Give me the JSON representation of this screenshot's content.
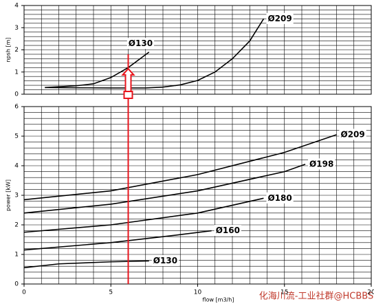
{
  "chart_data": [
    {
      "type": "line",
      "ylabel": "npsh [m]",
      "xlim": [
        0,
        20
      ],
      "ylim": [
        0,
        4
      ],
      "yticks": [
        0,
        1,
        2,
        3,
        4
      ],
      "grid": true,
      "x_minor_divisions": 5,
      "y_minor_divisions": 5,
      "series": [
        {
          "name": "Ø209",
          "color": "#000000",
          "x": [
            1.2,
            3,
            5,
            7,
            8,
            9,
            10,
            11,
            12,
            13,
            13.8
          ],
          "values": [
            0.3,
            0.29,
            0.28,
            0.28,
            0.32,
            0.42,
            0.62,
            1.0,
            1.6,
            2.4,
            3.4
          ]
        },
        {
          "name": "Ø130",
          "color": "#000000",
          "x": [
            1.2,
            3,
            4,
            5,
            6,
            7.2
          ],
          "values": [
            0.3,
            0.38,
            0.47,
            0.75,
            1.2,
            1.9
          ]
        }
      ]
    },
    {
      "type": "line",
      "ylabel": "power [kW]",
      "xlabel": "flow [m3/h]",
      "xlim": [
        0,
        20
      ],
      "ylim": [
        0,
        6
      ],
      "yticks": [
        0,
        1,
        2,
        3,
        4,
        5,
        6
      ],
      "xticks": [
        0,
        5,
        10,
        15,
        20
      ],
      "grid": true,
      "x_minor_divisions": 5,
      "y_minor_divisions": 5,
      "series": [
        {
          "name": "Ø209",
          "color": "#000000",
          "x": [
            0,
            5,
            10,
            15,
            18
          ],
          "values": [
            2.85,
            3.15,
            3.7,
            4.45,
            5.05
          ]
        },
        {
          "name": "Ø198",
          "color": "#000000",
          "x": [
            0,
            5,
            10,
            15,
            16.2
          ],
          "values": [
            2.4,
            2.7,
            3.15,
            3.8,
            4.05
          ]
        },
        {
          "name": "Ø180",
          "color": "#000000",
          "x": [
            0,
            5,
            10,
            13.8
          ],
          "values": [
            1.75,
            2.0,
            2.4,
            2.9
          ]
        },
        {
          "name": "Ø160",
          "color": "#000000",
          "x": [
            0,
            5,
            8,
            10.8
          ],
          "values": [
            1.15,
            1.4,
            1.6,
            1.8
          ]
        },
        {
          "name": "Ø130",
          "color": "#000000",
          "x": [
            0,
            2,
            5,
            7.2
          ],
          "values": [
            0.55,
            0.68,
            0.75,
            0.78
          ]
        }
      ]
    }
  ],
  "watermark": "化海川流-工业社群@HCBBS"
}
